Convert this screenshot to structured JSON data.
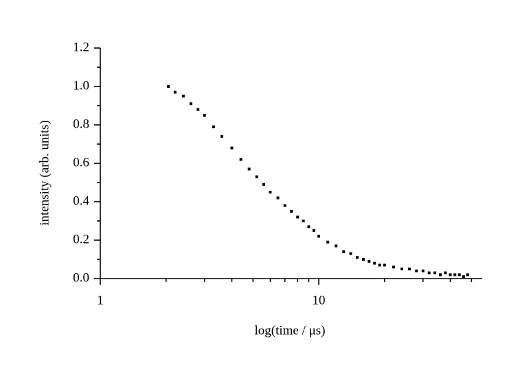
{
  "chart_data": {
    "type": "scatter",
    "x_label": "log(time / μs)",
    "y_label": "intensity (arb. units)",
    "xscale": "log",
    "xlim": [
      1,
      56
    ],
    "ylim": [
      0,
      1.2
    ],
    "xticks": [
      1,
      10
    ],
    "xminorticks": [
      2,
      3,
      4,
      5,
      6,
      7,
      8,
      9,
      20,
      30,
      40,
      50
    ],
    "yticks": [
      {
        "value": 0,
        "label": "0.0"
      },
      0.2,
      0.4,
      0.6,
      0.8,
      {
        "value": 1,
        "label": "1.0"
      },
      1.2
    ],
    "yminorticks": [
      0.1,
      0.3,
      0.5,
      0.7,
      0.9,
      1.1
    ],
    "color": "#000000",
    "series": [
      {
        "color": "#000000",
        "x": [
          2.05,
          2.2,
          2.4,
          2.6,
          2.8,
          3.0,
          3.3,
          3.6,
          4.0,
          4.4,
          4.8,
          5.2,
          5.6,
          6.0,
          6.5,
          7.0,
          7.5,
          8.0,
          8.5,
          9.0,
          9.5,
          10,
          11,
          12,
          13,
          14,
          15,
          16,
          17,
          18,
          19,
          20,
          22,
          24,
          26,
          28,
          30,
          32,
          34,
          36,
          38,
          40,
          42,
          44,
          46,
          48
        ],
        "values": [
          1.0,
          0.97,
          0.95,
          0.91,
          0.88,
          0.85,
          0.79,
          0.74,
          0.68,
          0.62,
          0.57,
          0.53,
          0.49,
          0.45,
          0.42,
          0.38,
          0.35,
          0.32,
          0.3,
          0.27,
          0.25,
          0.22,
          0.19,
          0.17,
          0.14,
          0.13,
          0.11,
          0.1,
          0.09,
          0.08,
          0.07,
          0.07,
          0.06,
          0.05,
          0.05,
          0.04,
          0.04,
          0.03,
          0.03,
          0.02,
          0.03,
          0.02,
          0.02,
          0.02,
          0.01,
          0.02
        ]
      }
    ]
  }
}
